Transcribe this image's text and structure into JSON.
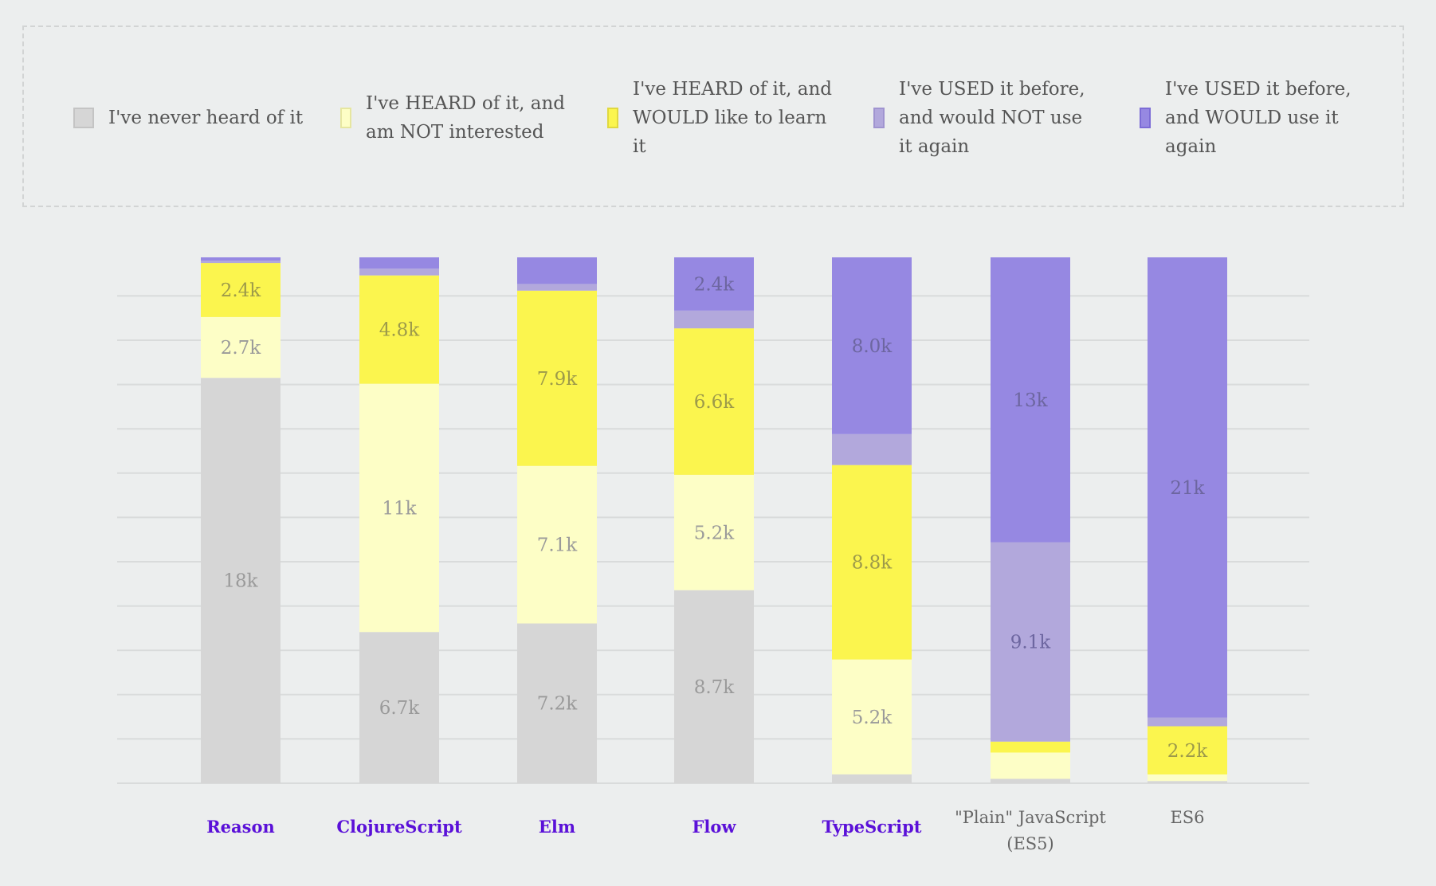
{
  "chart_data": {
    "type": "bar",
    "stacked": true,
    "normalized": true,
    "grid": true,
    "legend_placement": "top",
    "categories": [
      "Reason",
      "ClojureScript",
      "Elm",
      "Flow",
      "TypeScript",
      "\"Plain\" JavaScript (ES5)",
      "ES6"
    ],
    "category_links": [
      true,
      true,
      true,
      true,
      true,
      false,
      false
    ],
    "series": [
      {
        "name": "I've never heard of it",
        "color": "#d6d6d6",
        "border": "#c4c4c4",
        "values": [
          18.0,
          6.7,
          7.2,
          8.7,
          0.4,
          0.2,
          0.1
        ],
        "labels": [
          "18k",
          "6.7k",
          "7.2k",
          "8.7k",
          null,
          null,
          null
        ]
      },
      {
        "name": "I've HEARD of it, and am NOT interested",
        "color": "#fdfec6",
        "border": "#e6e6a0",
        "values": [
          2.7,
          11.0,
          7.1,
          5.2,
          5.2,
          1.2,
          0.3
        ],
        "labels": [
          "2.7k",
          "11k",
          "7.1k",
          "5.2k",
          "5.2k",
          null,
          null
        ]
      },
      {
        "name": "I've HEARD of it, and WOULD like to learn it",
        "color": "#fbf54e",
        "border": "#e0d840",
        "values": [
          2.4,
          4.8,
          7.9,
          6.6,
          8.8,
          0.5,
          2.2
        ],
        "labels": [
          "2.4k",
          "4.8k",
          "7.9k",
          "6.6k",
          "8.8k",
          null,
          "2.2k"
        ]
      },
      {
        "name": "I've USED it before, and would NOT use it again",
        "color": "#b2a8dc",
        "border": "#a094d0",
        "values": [
          0.1,
          0.3,
          0.3,
          0.8,
          1.4,
          9.1,
          0.4
        ],
        "labels": [
          null,
          null,
          null,
          null,
          null,
          "9.1k",
          null
        ]
      },
      {
        "name": "I've USED it before, and WOULD use it again",
        "color": "#9688e2",
        "border": "#7c6cd6",
        "values": [
          0.15,
          0.5,
          1.2,
          2.4,
          8.0,
          13.0,
          21.0
        ],
        "labels": [
          null,
          null,
          null,
          "2.4k",
          "8.0k",
          "13k",
          "21k"
        ]
      }
    ],
    "label_color": "#5a10d8"
  }
}
